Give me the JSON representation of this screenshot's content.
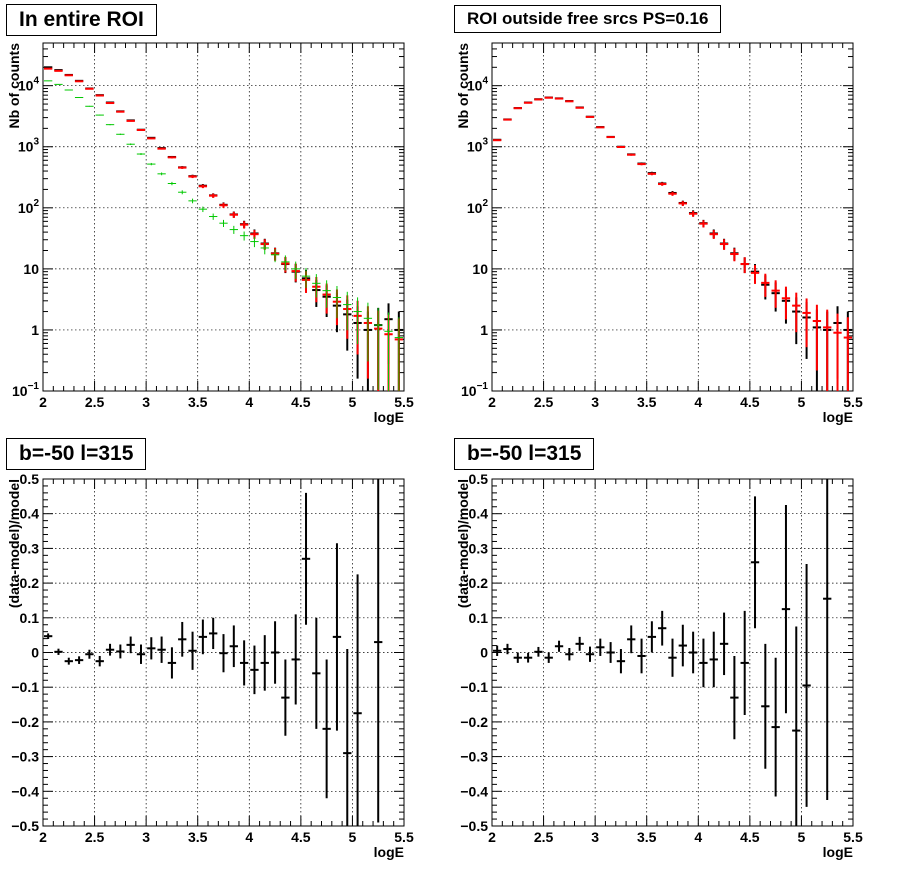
{
  "chart_data": [
    {
      "type": "scatter",
      "title": "In entire ROI",
      "xlabel": "logE",
      "ylabel": "Nb of counts",
      "xlim": [
        2,
        5.5
      ],
      "ylim": [
        0.1,
        50000
      ],
      "yscale": "log",
      "grid": true,
      "x_ticks": [
        "2",
        "2.5",
        "3",
        "3.5",
        "4",
        "4.5",
        "5",
        "5.5"
      ],
      "y_ticks": [
        "10^-1",
        "1",
        "10",
        "10^2",
        "10^3",
        "10^4"
      ],
      "x_bin_width": 0.1,
      "series": [
        {
          "color": "#000000",
          "x": [
            2.05,
            2.15,
            2.25,
            2.35,
            2.45,
            2.55,
            2.65,
            2.75,
            2.85,
            2.95,
            3.05,
            3.15,
            3.25,
            3.35,
            3.45,
            3.55,
            3.65,
            3.75,
            3.85,
            3.95,
            4.05,
            4.15,
            4.25,
            4.35,
            4.45,
            4.55,
            4.65,
            4.75,
            4.85,
            4.95,
            5.05,
            5.15,
            5.25,
            5.35,
            5.45
          ],
          "y": [
            20000,
            18000,
            15000,
            12000,
            9000,
            7000,
            5300,
            3800,
            2700,
            1900,
            1400,
            950,
            680,
            460,
            330,
            230,
            160,
            112,
            78,
            54,
            38,
            26,
            18,
            12,
            9,
            7,
            4.5,
            3.5,
            2.5,
            1.8,
            1.3,
            1,
            1.2,
            1.5,
            1
          ]
        },
        {
          "color": "#ff0000",
          "x": [
            2.05,
            2.15,
            2.25,
            2.35,
            2.45,
            2.55,
            2.65,
            2.75,
            2.85,
            2.95,
            3.05,
            3.15,
            3.25,
            3.35,
            3.45,
            3.55,
            3.65,
            3.75,
            3.85,
            3.95,
            4.05,
            4.15,
            4.25,
            4.35,
            4.45,
            4.55,
            4.65,
            4.75,
            4.85,
            4.95,
            5.05,
            5.15,
            5.25,
            5.35,
            5.45
          ],
          "y": [
            19000,
            17500,
            14800,
            11800,
            8900,
            6900,
            5200,
            3750,
            2650,
            1880,
            1370,
            930,
            670,
            455,
            325,
            225,
            158,
            110,
            77,
            53,
            37,
            25.5,
            17.8,
            12.2,
            9.2,
            6.6,
            5.1,
            3.8,
            2.9,
            2.2,
            1.7,
            1.3,
            1.05,
            0.85,
            0.7
          ]
        },
        {
          "color": "#00c800",
          "x": [
            2.05,
            2.15,
            2.25,
            2.35,
            2.45,
            2.55,
            2.65,
            2.75,
            2.85,
            2.95,
            3.05,
            3.15,
            3.25,
            3.35,
            3.45,
            3.55,
            3.65,
            3.75,
            3.85,
            3.95,
            4.05,
            4.15,
            4.25,
            4.35,
            4.45,
            4.55,
            4.65,
            4.75,
            4.85,
            4.95,
            5.05,
            5.15,
            5.25,
            5.35,
            5.45
          ],
          "y": [
            12000,
            10500,
            8500,
            6400,
            4600,
            3300,
            2300,
            1600,
            1100,
            760,
            520,
            360,
            250,
            180,
            130,
            95,
            72,
            56,
            44,
            35,
            28,
            22,
            17,
            13,
            10,
            7.6,
            5.8,
            4.4,
            3.4,
            2.6,
            2,
            1.55,
            1.2,
            0.95,
            0.75
          ]
        }
      ]
    },
    {
      "type": "scatter",
      "title": "ROI outside free srcs PS=0.16",
      "xlabel": "logE",
      "ylabel": "Nb of counts",
      "xlim": [
        2,
        5.5
      ],
      "ylim": [
        0.1,
        50000
      ],
      "yscale": "log",
      "grid": true,
      "x_ticks": [
        "2",
        "2.5",
        "3",
        "3.5",
        "4",
        "4.5",
        "5",
        "5.5"
      ],
      "y_ticks": [
        "10^-1",
        "1",
        "10",
        "10^2",
        "10^3",
        "10^4"
      ],
      "x_bin_width": 0.1,
      "series": [
        {
          "color": "#000000",
          "x": [
            2.05,
            2.15,
            2.25,
            2.35,
            2.45,
            2.55,
            2.65,
            2.75,
            2.85,
            2.95,
            3.05,
            3.15,
            3.25,
            3.35,
            3.45,
            3.55,
            3.65,
            3.75,
            3.85,
            3.95,
            4.05,
            4.15,
            4.25,
            4.35,
            4.45,
            4.55,
            4.65,
            4.75,
            4.85,
            4.95,
            5.05,
            5.15,
            5.25,
            5.35,
            5.45
          ],
          "y": [
            1300,
            2800,
            4300,
            5300,
            6000,
            6400,
            6200,
            5600,
            4400,
            3100,
            2100,
            1450,
            1000,
            750,
            530,
            370,
            250,
            175,
            120,
            82,
            56,
            38,
            26,
            18,
            12,
            9,
            5.5,
            4,
            3,
            2,
            1.6,
            1.1,
            1,
            1.3,
            1
          ]
        },
        {
          "color": "#ff0000",
          "x": [
            2.05,
            2.15,
            2.25,
            2.35,
            2.45,
            2.55,
            2.65,
            2.75,
            2.85,
            2.95,
            3.05,
            3.15,
            3.25,
            3.35,
            3.45,
            3.55,
            3.65,
            3.75,
            3.85,
            3.95,
            4.05,
            4.15,
            4.25,
            4.35,
            4.45,
            4.55,
            4.65,
            4.75,
            4.85,
            4.95,
            5.05,
            5.15,
            5.25,
            5.35,
            5.45
          ],
          "y": [
            1280,
            2780,
            4280,
            5250,
            5950,
            6350,
            6150,
            5550,
            4350,
            3080,
            2080,
            1440,
            990,
            740,
            520,
            360,
            245,
            170,
            118,
            80,
            55,
            37,
            25.5,
            17.5,
            12,
            8.6,
            5.9,
            4.4,
            3.3,
            2.5,
            1.9,
            1.4,
            1.1,
            0.9,
            0.75
          ]
        }
      ]
    },
    {
      "type": "scatter",
      "title": "b=-50 l=315",
      "xlabel": "logE",
      "ylabel": "(data-model)/model",
      "xlim": [
        2,
        5.5
      ],
      "ylim": [
        -0.5,
        0.5
      ],
      "grid": true,
      "x_ticks": [
        "2",
        "2.5",
        "3",
        "3.5",
        "4",
        "4.5",
        "5",
        "5.5"
      ],
      "y_ticks": [
        "−0.5",
        "−0.4",
        "−0.3",
        "−0.2",
        "−0.1",
        "0",
        "0.1",
        "0.2",
        "0.3",
        "0.4",
        "0.5"
      ],
      "x_bin_width": 0.1,
      "series": [
        {
          "color": "#000000",
          "x": [
            2.05,
            2.15,
            2.25,
            2.35,
            2.45,
            2.55,
            2.65,
            2.75,
            2.85,
            2.95,
            3.05,
            3.15,
            3.25,
            3.35,
            3.45,
            3.55,
            3.65,
            3.75,
            3.85,
            3.95,
            4.05,
            4.15,
            4.25,
            4.35,
            4.45,
            4.55,
            4.65,
            4.75,
            4.85,
            4.95,
            5.05,
            5.25
          ],
          "y": [
            0.047,
            0.002,
            -0.025,
            -0.022,
            -0.005,
            -0.025,
            0.008,
            0.003,
            0.022,
            -0.005,
            0.012,
            0.008,
            -0.03,
            0.038,
            0.005,
            0.045,
            0.055,
            -0.002,
            0.018,
            -0.03,
            -0.05,
            -0.03,
            0,
            -0.13,
            -0.02,
            0.27,
            -0.06,
            -0.22,
            0.045,
            -0.29,
            -0.175,
            0.03
          ],
          "yerr": [
            0.008,
            0.009,
            0.01,
            0.011,
            0.013,
            0.015,
            0.017,
            0.02,
            0.024,
            0.028,
            0.032,
            0.038,
            0.045,
            0.05,
            0.055,
            0.05,
            0.045,
            0.055,
            0.06,
            0.065,
            0.07,
            0.08,
            0.09,
            0.11,
            0.13,
            0.19,
            0.16,
            0.2,
            0.27,
            0.3,
            0.4,
            0.52
          ]
        }
      ]
    },
    {
      "type": "scatter",
      "title": "b=-50 l=315",
      "xlabel": "logE",
      "ylabel": "(data-model)/model",
      "xlim": [
        2,
        5.5
      ],
      "ylim": [
        -0.5,
        0.5
      ],
      "grid": true,
      "x_ticks": [
        "2",
        "2.5",
        "3",
        "3.5",
        "4",
        "4.5",
        "5",
        "5.5"
      ],
      "y_ticks": [
        "−0.5",
        "−0.4",
        "−0.3",
        "−0.2",
        "−0.1",
        "0",
        "0.1",
        "0.2",
        "0.3",
        "0.4",
        "0.5"
      ],
      "x_bin_width": 0.1,
      "series": [
        {
          "color": "#000000",
          "x": [
            2.05,
            2.15,
            2.25,
            2.35,
            2.45,
            2.55,
            2.65,
            2.75,
            2.85,
            2.95,
            3.05,
            3.15,
            3.25,
            3.35,
            3.45,
            3.55,
            3.65,
            3.75,
            3.85,
            3.95,
            4.05,
            4.15,
            4.25,
            4.35,
            4.45,
            4.55,
            4.65,
            4.75,
            4.85,
            4.95,
            5.05,
            5.25
          ],
          "y": [
            0.005,
            0.01,
            -0.015,
            -0.015,
            0.002,
            -0.015,
            0.018,
            -0.005,
            0.025,
            -0.005,
            0.015,
            0,
            -0.025,
            0.038,
            -0.01,
            0.045,
            0.07,
            -0.015,
            0.02,
            0,
            -0.03,
            -0.02,
            0.025,
            -0.13,
            -0.03,
            0.26,
            -0.155,
            -0.215,
            0.125,
            -0.225,
            -0.095,
            0.155
          ],
          "yerr": [
            0.015,
            0.015,
            0.015,
            0.014,
            0.014,
            0.015,
            0.016,
            0.018,
            0.02,
            0.022,
            0.025,
            0.03,
            0.035,
            0.04,
            0.05,
            0.045,
            0.05,
            0.055,
            0.06,
            0.06,
            0.07,
            0.08,
            0.09,
            0.12,
            0.15,
            0.19,
            0.18,
            0.2,
            0.3,
            0.3,
            0.35,
            0.58
          ]
        }
      ]
    }
  ]
}
